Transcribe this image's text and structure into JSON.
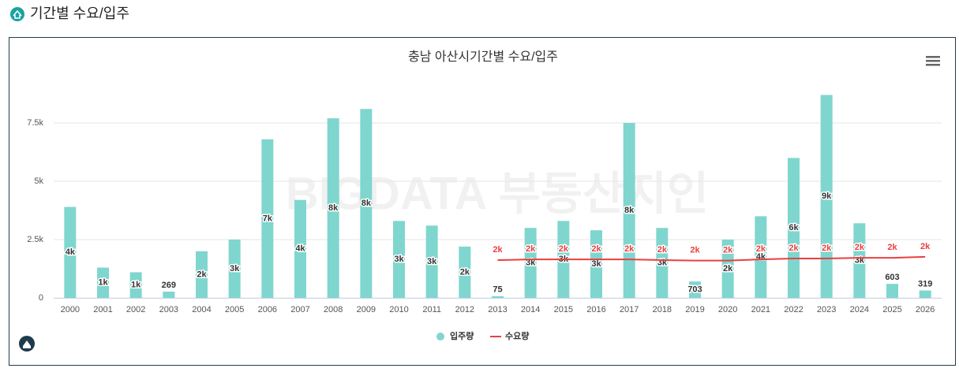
{
  "header": {
    "title": "기간별 수요/입주"
  },
  "chart_data": {
    "type": "bar",
    "title": "충남 아산시기간별 수요/입주",
    "watermark": "BIGDATA 부동산지인",
    "categories": [
      "2000",
      "2001",
      "2002",
      "2003",
      "2004",
      "2005",
      "2006",
      "2007",
      "2008",
      "2009",
      "2010",
      "2011",
      "2012",
      "2013",
      "2014",
      "2015",
      "2016",
      "2017",
      "2018",
      "2019",
      "2020",
      "2021",
      "2022",
      "2023",
      "2024",
      "2025",
      "2026"
    ],
    "series": [
      {
        "name": "입주량",
        "type": "bar",
        "color": "#7fd6cf",
        "values": [
          3900,
          1300,
          1100,
          269,
          2000,
          2500,
          6800,
          4200,
          7700,
          8100,
          3300,
          3100,
          2200,
          75,
          3000,
          3300,
          2900,
          7500,
          3000,
          703,
          2500,
          3500,
          6000,
          8700,
          3200,
          603,
          319
        ],
        "value_labels": [
          "4k",
          "1k",
          "1k",
          "269",
          "2k",
          "3k",
          "7k",
          "4k",
          "8k",
          "8k",
          "3k",
          "3k",
          "2k",
          "75",
          "3k",
          "3k",
          "3k",
          "8k",
          "3k",
          "703",
          "2k",
          "4k",
          "6k",
          "9k",
          "3k",
          "603",
          "319"
        ]
      },
      {
        "name": "수요량",
        "type": "line",
        "color": "#e94040",
        "values": [
          null,
          null,
          null,
          null,
          null,
          null,
          null,
          null,
          null,
          null,
          null,
          null,
          null,
          1620,
          1650,
          1650,
          1650,
          1650,
          1620,
          1600,
          1600,
          1650,
          1690,
          1690,
          1720,
          1720,
          1760
        ],
        "value_labels": [
          null,
          null,
          null,
          null,
          null,
          null,
          null,
          null,
          null,
          null,
          null,
          null,
          null,
          "2k",
          "2k",
          "2k",
          "2k",
          "2k",
          "2k",
          "2k",
          "2k",
          "2k",
          "2k",
          "2k",
          "2k",
          "2k",
          "2k"
        ]
      }
    ],
    "ylim": [
      0,
      9000
    ],
    "yticks": [
      0,
      {
        "value": 2500,
        "label": "2.5k"
      },
      {
        "value": 5000,
        "label": "5k"
      },
      {
        "value": 7500,
        "label": "7.5k"
      }
    ],
    "grid": true,
    "legend": "bottom"
  }
}
